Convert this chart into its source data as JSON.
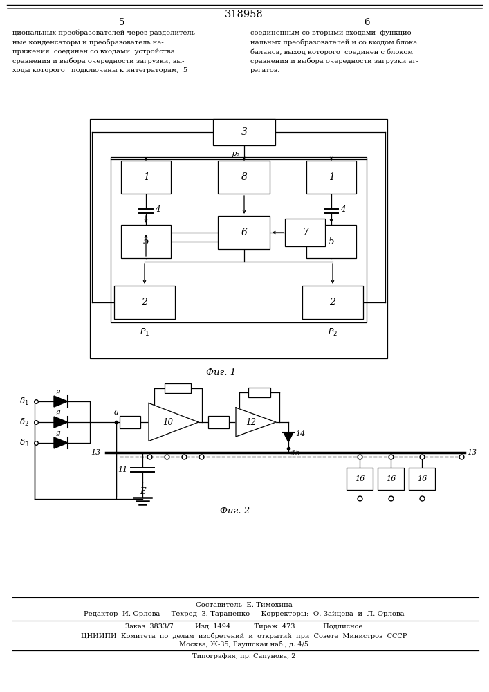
{
  "title": "318958",
  "page_left": "5",
  "page_right": "6",
  "fig1_caption": "Фиг. 1",
  "fig2_caption": "Фиг. 2",
  "footer_composer": "Составитель  Е. Тимохина",
  "footer_editors": "Редактор  И. Орлова     Техред  З. Тараненко     Корректоры:  О. Зайцева  и  Л. Орлова",
  "footer_order": "Заказ  3833/7          Изд. 1494           Тираж  473             Подписное",
  "footer_cniipi": "ЦНИИПИ  Комитета  по  делам  изобретений  и  открытий  при  Совете  Министров  СССР",
  "footer_moscow": "Москва, Ж-35, Раушская наб., д. 4/5",
  "footer_tipogr": "Типография, пр. Сапунова, 2",
  "text_left_lines": [
    "циональных преобразователей через разделитель-",
    "ные конденсаторы и преобразователь на-",
    "пряжения  соединен со входами  устройства",
    "сравнения и выбора очередности загрузки, вы-",
    "ходы которого   подключены к интеграторам,"
  ],
  "text_right_lines": [
    "соединенным со вторыми входами  функцио-",
    "нальных преобразователей и со входом блока",
    "баланса, выход которого  соединен с блоком",
    "сравнения и выбора очередности загрузки аг-",
    "регатов."
  ],
  "page_num_5": "5",
  "page_num_num5_right": "регатов.",
  "bg": "#ffffff"
}
